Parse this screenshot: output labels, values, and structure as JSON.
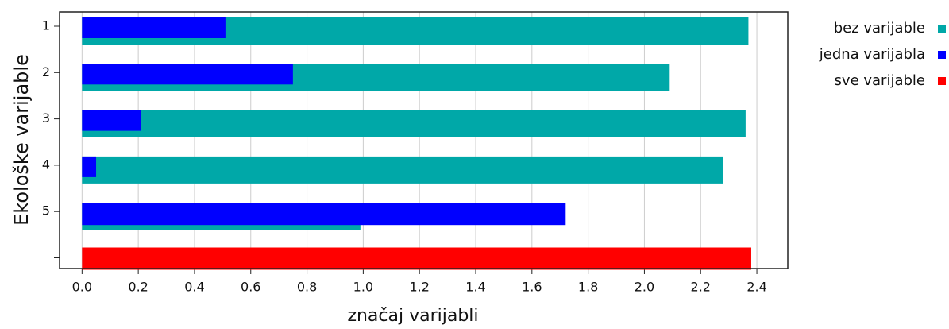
{
  "chart_data": {
    "type": "barh-overlap",
    "xlabel": "značaj varijabli",
    "ylabel": "Ekološke varijable",
    "categories": [
      "1",
      "2",
      "3",
      "4",
      "5",
      null
    ],
    "series": [
      {
        "name": "bez varijable",
        "color": "#00a8a8",
        "values": [
          2.37,
          2.09,
          2.36,
          2.28,
          0.99,
          null
        ]
      },
      {
        "name": "jedna varijabla",
        "color": "#0000ff",
        "values": [
          0.51,
          0.75,
          0.21,
          0.05,
          1.72,
          null
        ]
      },
      {
        "name": "sve varijable",
        "color": "#ff0000",
        "values": [
          null,
          null,
          null,
          null,
          null,
          2.38
        ]
      }
    ],
    "xlim": [
      -0.08,
      2.51
    ],
    "xticks": [
      {
        "value": 0,
        "label": "0.0"
      },
      0.2,
      0.4,
      0.6,
      0.8,
      {
        "value": 1,
        "label": "1.0"
      },
      1.2,
      1.4,
      1.6,
      1.8,
      {
        "value": 2,
        "label": "2.0"
      },
      2.2,
      2.4
    ],
    "grid": true,
    "legend": "right"
  }
}
